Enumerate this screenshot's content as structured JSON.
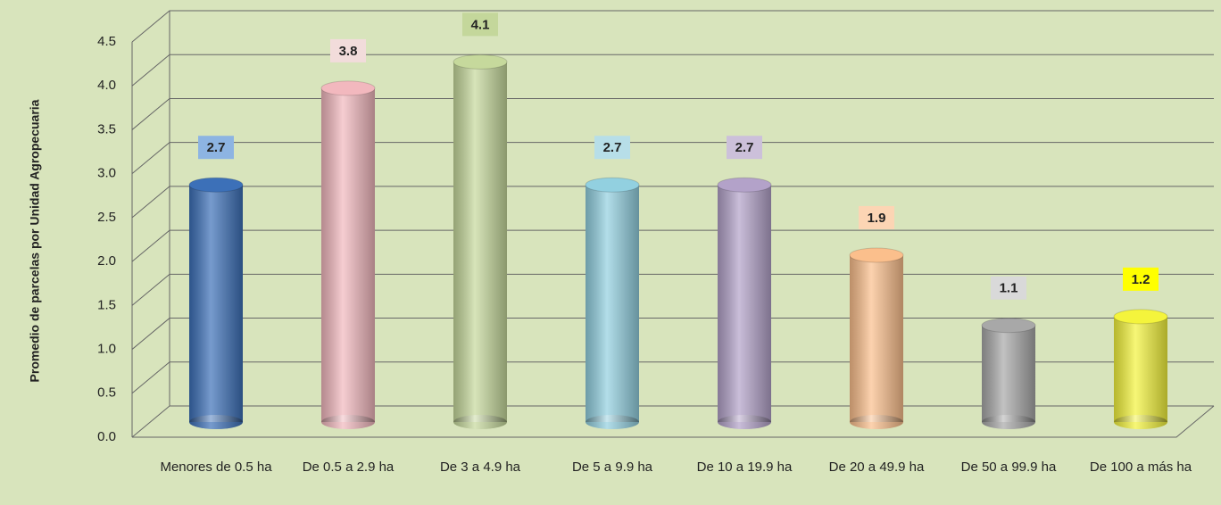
{
  "chart_data": {
    "type": "bar",
    "y_label": "Promedio de parcelas  por Unidad Agropecuaria",
    "categories": [
      "Menores de 0.5 ha",
      "De 0.5 a 2.9 ha",
      "De 3 a 4.9 ha",
      "De 5 a 9.9 ha",
      "De 10 a 19.9 ha",
      "De 20 a 49.9 ha",
      "De 50 a 99.9 ha",
      "De 100 a más ha"
    ],
    "values": [
      2.7,
      3.8,
      4.1,
      2.7,
      2.7,
      1.9,
      1.1,
      1.2
    ],
    "colors": [
      "#3c70b8",
      "#f2b8be",
      "#c6d99c",
      "#92d0e0",
      "#b3a2c9",
      "#fbbf8c",
      "#a8a8a8",
      "#f4f43c"
    ],
    "label_colors": [
      "#8db4e2",
      "#f2dcdb",
      "#c4d79b",
      "#b7dee8",
      "#ccc0da",
      "#fcd5b4",
      "#d9d9d9",
      "#ffff00"
    ],
    "ylim": [
      0,
      4.5
    ],
    "yticks": [
      {
        "value": 0,
        "label": "0.0"
      },
      0.5,
      {
        "value": 1,
        "label": "1.0"
      },
      1.5,
      {
        "value": 2,
        "label": "2.0"
      },
      2.5,
      {
        "value": 3,
        "label": "3.0"
      },
      3.5,
      {
        "value": 4,
        "label": "4.0"
      },
      4.5
    ],
    "grid": true
  }
}
